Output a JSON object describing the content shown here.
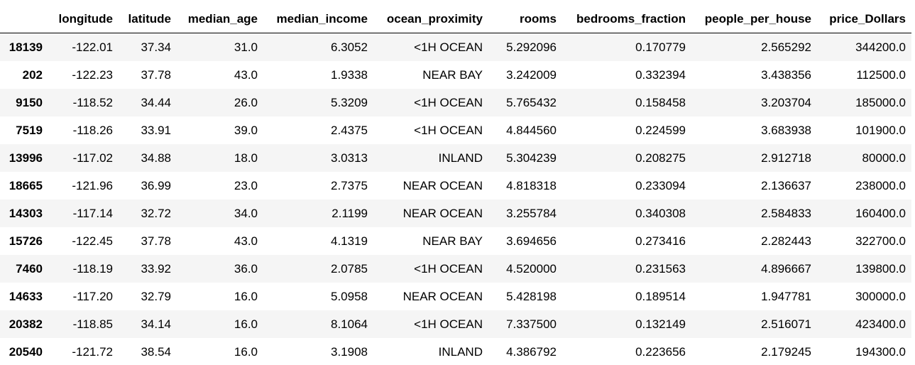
{
  "table": {
    "index_header": "",
    "columns": [
      "longitude",
      "latitude",
      "median_age",
      "median_income",
      "ocean_proximity",
      "rooms",
      "bedrooms_fraction",
      "people_per_house",
      "price_Dollars"
    ],
    "rows": [
      {
        "index": "18139",
        "values": [
          "-122.01",
          "37.34",
          "31.0",
          "6.3052",
          "<1H OCEAN",
          "5.292096",
          "0.170779",
          "2.565292",
          "344200.0"
        ]
      },
      {
        "index": "202",
        "values": [
          "-122.23",
          "37.78",
          "43.0",
          "1.9338",
          "NEAR BAY",
          "3.242009",
          "0.332394",
          "3.438356",
          "112500.0"
        ]
      },
      {
        "index": "9150",
        "values": [
          "-118.52",
          "34.44",
          "26.0",
          "5.3209",
          "<1H OCEAN",
          "5.765432",
          "0.158458",
          "3.203704",
          "185000.0"
        ]
      },
      {
        "index": "7519",
        "values": [
          "-118.26",
          "33.91",
          "39.0",
          "2.4375",
          "<1H OCEAN",
          "4.844560",
          "0.224599",
          "3.683938",
          "101900.0"
        ]
      },
      {
        "index": "13996",
        "values": [
          "-117.02",
          "34.88",
          "18.0",
          "3.0313",
          "INLAND",
          "5.304239",
          "0.208275",
          "2.912718",
          "80000.0"
        ]
      },
      {
        "index": "18665",
        "values": [
          "-121.96",
          "36.99",
          "23.0",
          "2.7375",
          "NEAR OCEAN",
          "4.818318",
          "0.233094",
          "2.136637",
          "238000.0"
        ]
      },
      {
        "index": "14303",
        "values": [
          "-117.14",
          "32.72",
          "34.0",
          "2.1199",
          "NEAR OCEAN",
          "3.255784",
          "0.340308",
          "2.584833",
          "160400.0"
        ]
      },
      {
        "index": "15726",
        "values": [
          "-122.45",
          "37.78",
          "43.0",
          "4.1319",
          "NEAR BAY",
          "3.694656",
          "0.273416",
          "2.282443",
          "322700.0"
        ]
      },
      {
        "index": "7460",
        "values": [
          "-118.19",
          "33.92",
          "36.0",
          "2.0785",
          "<1H OCEAN",
          "4.520000",
          "0.231563",
          "4.896667",
          "139800.0"
        ]
      },
      {
        "index": "14633",
        "values": [
          "-117.20",
          "32.79",
          "16.0",
          "5.0958",
          "NEAR OCEAN",
          "5.428198",
          "0.189514",
          "1.947781",
          "300000.0"
        ]
      },
      {
        "index": "20382",
        "values": [
          "-118.85",
          "34.14",
          "16.0",
          "8.1064",
          "<1H OCEAN",
          "7.337500",
          "0.132149",
          "2.516071",
          "423400.0"
        ]
      },
      {
        "index": "20540",
        "values": [
          "-121.72",
          "38.54",
          "16.0",
          "3.1908",
          "INLAND",
          "4.386792",
          "0.223656",
          "2.179245",
          "194300.0"
        ]
      }
    ]
  }
}
